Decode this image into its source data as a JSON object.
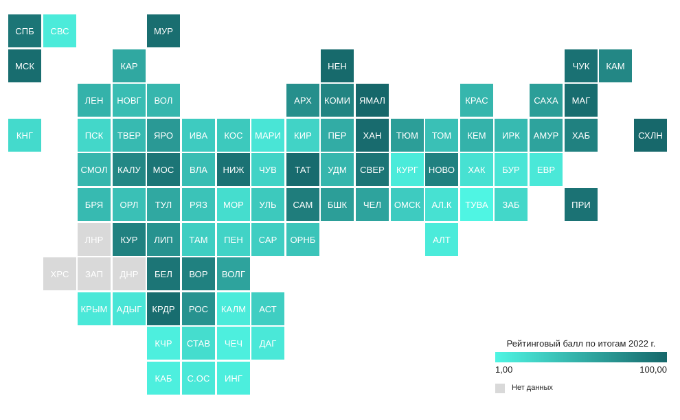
{
  "colors": {
    "low": "#4ff5e3",
    "high": "#16676a",
    "nodata": "#d9d9d9"
  },
  "legend": {
    "title": "Рейтинговый балл по итогам 2022 г.",
    "min_label": "1,00",
    "max_label": "100,00",
    "nodata_label": "Нет данных"
  },
  "regions": [
    {
      "label": "СПБ",
      "col": 0,
      "row": 0,
      "value": 90
    },
    {
      "label": "СВС",
      "col": 1,
      "row": 0,
      "value": 8
    },
    {
      "label": "МУР",
      "col": 4,
      "row": 0,
      "value": 95
    },
    {
      "label": "МСК",
      "col": 0,
      "row": 1,
      "value": 96
    },
    {
      "label": "КАР",
      "col": 3,
      "row": 1,
      "value": 55
    },
    {
      "label": "НЕН",
      "col": 9,
      "row": 1,
      "value": 98
    },
    {
      "label": "ЧУК",
      "col": 16,
      "row": 1,
      "value": 93
    },
    {
      "label": "КАМ",
      "col": 17,
      "row": 1,
      "value": 78
    },
    {
      "label": "ЛЕН",
      "col": 2,
      "row": 2,
      "value": 48
    },
    {
      "label": "НОВГ",
      "col": 3,
      "row": 2,
      "value": 40
    },
    {
      "label": "ВОЛ",
      "col": 4,
      "row": 2,
      "value": 45
    },
    {
      "label": "АРХ",
      "col": 8,
      "row": 2,
      "value": 72
    },
    {
      "label": "КОМИ",
      "col": 9,
      "row": 2,
      "value": 80
    },
    {
      "label": "ЯМАЛ",
      "col": 10,
      "row": 2,
      "value": 100
    },
    {
      "label": "КРАС",
      "col": 13,
      "row": 2,
      "value": 45
    },
    {
      "label": "САХА",
      "col": 15,
      "row": 2,
      "value": 62
    },
    {
      "label": "МАГ",
      "col": 16,
      "row": 2,
      "value": 96
    },
    {
      "label": "КНГ",
      "col": 0,
      "row": 3,
      "value": 20
    },
    {
      "label": "ПСК",
      "col": 2,
      "row": 3,
      "value": 22
    },
    {
      "label": "ТВЕР",
      "col": 3,
      "row": 3,
      "value": 42
    },
    {
      "label": "ЯРО",
      "col": 4,
      "row": 3,
      "value": 65
    },
    {
      "label": "ИВА",
      "col": 5,
      "row": 3,
      "value": 30
    },
    {
      "label": "КОС",
      "col": 6,
      "row": 3,
      "value": 32
    },
    {
      "label": "МАРИ",
      "col": 7,
      "row": 3,
      "value": 12
    },
    {
      "label": "КИР",
      "col": 8,
      "row": 3,
      "value": 25
    },
    {
      "label": "ПЕР",
      "col": 9,
      "row": 3,
      "value": 52
    },
    {
      "label": "ХАН",
      "col": 10,
      "row": 3,
      "value": 97
    },
    {
      "label": "ТЮМ",
      "col": 11,
      "row": 3,
      "value": 62
    },
    {
      "label": "ТОМ",
      "col": 12,
      "row": 3,
      "value": 38
    },
    {
      "label": "КЕМ",
      "col": 13,
      "row": 3,
      "value": 48
    },
    {
      "label": "ИРК",
      "col": 14,
      "row": 3,
      "value": 42
    },
    {
      "label": "АМУР",
      "col": 15,
      "row": 3,
      "value": 58
    },
    {
      "label": "ХАБ",
      "col": 16,
      "row": 3,
      "value": 82
    },
    {
      "label": "СХЛН",
      "col": 18,
      "row": 3,
      "value": 99
    },
    {
      "label": "СМОЛ",
      "col": 2,
      "row": 4,
      "value": 45
    },
    {
      "label": "КАЛУ",
      "col": 3,
      "row": 4,
      "value": 78
    },
    {
      "label": "МОС",
      "col": 4,
      "row": 4,
      "value": 90
    },
    {
      "label": "ВЛА",
      "col": 5,
      "row": 4,
      "value": 40
    },
    {
      "label": "НИЖ",
      "col": 6,
      "row": 4,
      "value": 92
    },
    {
      "label": "ЧУВ",
      "col": 7,
      "row": 4,
      "value": 25
    },
    {
      "label": "ТАТ",
      "col": 8,
      "row": 4,
      "value": 97
    },
    {
      "label": "УДМ",
      "col": 9,
      "row": 4,
      "value": 45
    },
    {
      "label": "СВЕР",
      "col": 10,
      "row": 4,
      "value": 90
    },
    {
      "label": "КУРГ",
      "col": 11,
      "row": 4,
      "value": 8
    },
    {
      "label": "НОВО",
      "col": 12,
      "row": 4,
      "value": 82
    },
    {
      "label": "ХАК",
      "col": 13,
      "row": 4,
      "value": 15
    },
    {
      "label": "БУР",
      "col": 14,
      "row": 4,
      "value": 12
    },
    {
      "label": "ЕВР",
      "col": 15,
      "row": 4,
      "value": 10
    },
    {
      "label": "БРЯ",
      "col": 2,
      "row": 5,
      "value": 42
    },
    {
      "label": "ОРЛ",
      "col": 3,
      "row": 5,
      "value": 38
    },
    {
      "label": "ТУЛ",
      "col": 4,
      "row": 5,
      "value": 55
    },
    {
      "label": "РЯЗ",
      "col": 5,
      "row": 5,
      "value": 36
    },
    {
      "label": "МОР",
      "col": 6,
      "row": 5,
      "value": 18
    },
    {
      "label": "УЛЬ",
      "col": 7,
      "row": 5,
      "value": 32
    },
    {
      "label": "САМ",
      "col": 8,
      "row": 5,
      "value": 85
    },
    {
      "label": "БШК",
      "col": 9,
      "row": 5,
      "value": 62
    },
    {
      "label": "ЧЕЛ",
      "col": 10,
      "row": 5,
      "value": 58
    },
    {
      "label": "ОМСК",
      "col": 11,
      "row": 5,
      "value": 30
    },
    {
      "label": "АЛ.К",
      "col": 12,
      "row": 5,
      "value": 15
    },
    {
      "label": "ТУВА",
      "col": 13,
      "row": 5,
      "value": 1
    },
    {
      "label": "ЗАБ",
      "col": 14,
      "row": 5,
      "value": 22
    },
    {
      "label": "ПРИ",
      "col": 16,
      "row": 5,
      "value": 92
    },
    {
      "label": "ЛНР",
      "col": 2,
      "row": 6,
      "value": null
    },
    {
      "label": "КУР",
      "col": 3,
      "row": 6,
      "value": 82
    },
    {
      "label": "ЛИП",
      "col": 4,
      "row": 6,
      "value": 70
    },
    {
      "label": "ТАМ",
      "col": 5,
      "row": 6,
      "value": 28
    },
    {
      "label": "ПЕН",
      "col": 6,
      "row": 6,
      "value": 25
    },
    {
      "label": "САР",
      "col": 7,
      "row": 6,
      "value": 28
    },
    {
      "label": "ОРНБ",
      "col": 8,
      "row": 6,
      "value": 35
    },
    {
      "label": "АЛТ",
      "col": 12,
      "row": 6,
      "value": 8
    },
    {
      "label": "ХРС",
      "col": 1,
      "row": 7,
      "value": null
    },
    {
      "label": "ЗАП",
      "col": 2,
      "row": 7,
      "value": null
    },
    {
      "label": "ДНР",
      "col": 3,
      "row": 7,
      "value": null
    },
    {
      "label": "БЕЛ",
      "col": 4,
      "row": 7,
      "value": 90
    },
    {
      "label": "ВОР",
      "col": 5,
      "row": 7,
      "value": 82
    },
    {
      "label": "ВОЛГ",
      "col": 6,
      "row": 7,
      "value": 58
    },
    {
      "label": "КРЫМ",
      "col": 2,
      "row": 8,
      "value": 10
    },
    {
      "label": "АДЫГ",
      "col": 3,
      "row": 8,
      "value": 12
    },
    {
      "label": "КРДР",
      "col": 4,
      "row": 8,
      "value": 96
    },
    {
      "label": "РОС",
      "col": 5,
      "row": 8,
      "value": 70
    },
    {
      "label": "КАЛМ",
      "col": 6,
      "row": 8,
      "value": 8
    },
    {
      "label": "АСТ",
      "col": 7,
      "row": 8,
      "value": 28
    },
    {
      "label": "КЧР",
      "col": 4,
      "row": 9,
      "value": 5
    },
    {
      "label": "СТАВ",
      "col": 5,
      "row": 9,
      "value": 18
    },
    {
      "label": "ЧЕЧ",
      "col": 6,
      "row": 9,
      "value": 5
    },
    {
      "label": "ДАГ",
      "col": 7,
      "row": 9,
      "value": 10
    },
    {
      "label": "КАБ",
      "col": 4,
      "row": 10,
      "value": 5
    },
    {
      "label": "С.ОС",
      "col": 5,
      "row": 10,
      "value": 10
    },
    {
      "label": "ИНГ",
      "col": 6,
      "row": 10,
      "value": 6
    }
  ]
}
